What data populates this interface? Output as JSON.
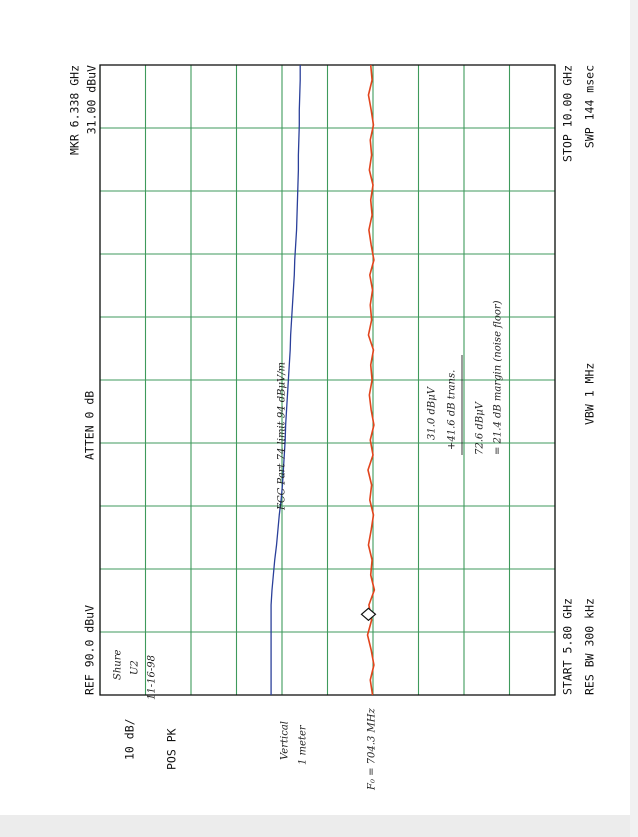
{
  "chart_data": {
    "type": "line",
    "x": [
      5.8,
      5.9,
      6.0,
      6.1,
      6.2,
      6.3,
      6.4,
      6.5,
      6.6,
      6.7,
      6.8,
      6.9,
      7.0,
      7.1,
      7.2,
      7.3,
      7.4,
      7.5,
      7.6,
      7.7,
      7.8,
      7.9,
      8.0,
      8.1,
      8.2,
      8.3,
      8.4,
      8.5,
      8.6,
      8.7,
      8.8,
      8.9,
      9.0,
      9.1,
      9.2,
      9.3,
      9.4,
      9.5,
      9.6,
      9.7,
      9.8,
      9.9,
      10.0
    ],
    "series": [
      {
        "color": "#e2441c",
        "values": [
          30.1,
          30.6,
          29.8,
          30.4,
          31.2,
          30.3,
          30.9,
          29.7,
          30.5,
          30.2,
          31.0,
          30.4,
          29.9,
          30.7,
          30.3,
          31.1,
          30.0,
          30.6,
          29.8,
          30.4,
          30.8,
          30.2,
          30.5,
          29.9,
          31.0,
          30.3,
          30.6,
          30.1,
          30.7,
          29.8,
          30.4,
          30.9,
          30.2,
          30.5,
          30.0,
          30.8,
          30.3,
          30.6,
          29.9,
          30.4,
          31.0,
          30.2,
          30.5
        ]
      },
      {
        "color": "#2a3f9a",
        "values": [
          52.4,
          52.4,
          52.4,
          52.4,
          52.4,
          52.4,
          52.4,
          52.2,
          51.9,
          51.6,
          51.2,
          50.9,
          50.6,
          50.2,
          49.9,
          49.7,
          49.5,
          49.3,
          49.2,
          49.0,
          48.8,
          48.6,
          48.4,
          48.2,
          48.1,
          47.9,
          47.7,
          47.5,
          47.3,
          47.2,
          47.0,
          46.8,
          46.7,
          46.6,
          46.5,
          46.4,
          46.4,
          46.3,
          46.2,
          46.2,
          46.1,
          46.0,
          46.0
        ]
      }
    ],
    "marker": {
      "x": 6.338,
      "y": 31.0
    },
    "xlim": [
      5.8,
      10.0
    ],
    "ylim": [
      -10,
      90
    ],
    "xticks": [
      5.8,
      6.22,
      6.64,
      7.06,
      7.48,
      7.9,
      8.32,
      8.74,
      9.16,
      9.58,
      10.0
    ],
    "yticks": [
      -10,
      0,
      10,
      20,
      30,
      40,
      50,
      60,
      70,
      80,
      90
    ],
    "grid": true,
    "grid_color": "#3f9a5c",
    "annotations": [
      "REF 90.0 dBuV",
      "10 dB/",
      "POS PK",
      "ATTEN 0 dB",
      "MKR 6.338 GHz",
      "31.00 dBuV",
      "START 5.80 GHz",
      "RES BW 300 kHz",
      "VBW 1 MHz",
      "STOP 10.00 GHz",
      "SWP 144 msec"
    ],
    "handwritten": [
      "Shure",
      "U2",
      "11-16-98",
      "FCC Part 74 limit 94 dBμV/m",
      "Vertical",
      "1 meter",
      "F₀ = 704.3 MHz",
      "31.0 dBμV",
      "+41.6 dB trans.",
      "72.6 dBμV",
      "= 21.4 dB margin (noise floor)"
    ]
  }
}
